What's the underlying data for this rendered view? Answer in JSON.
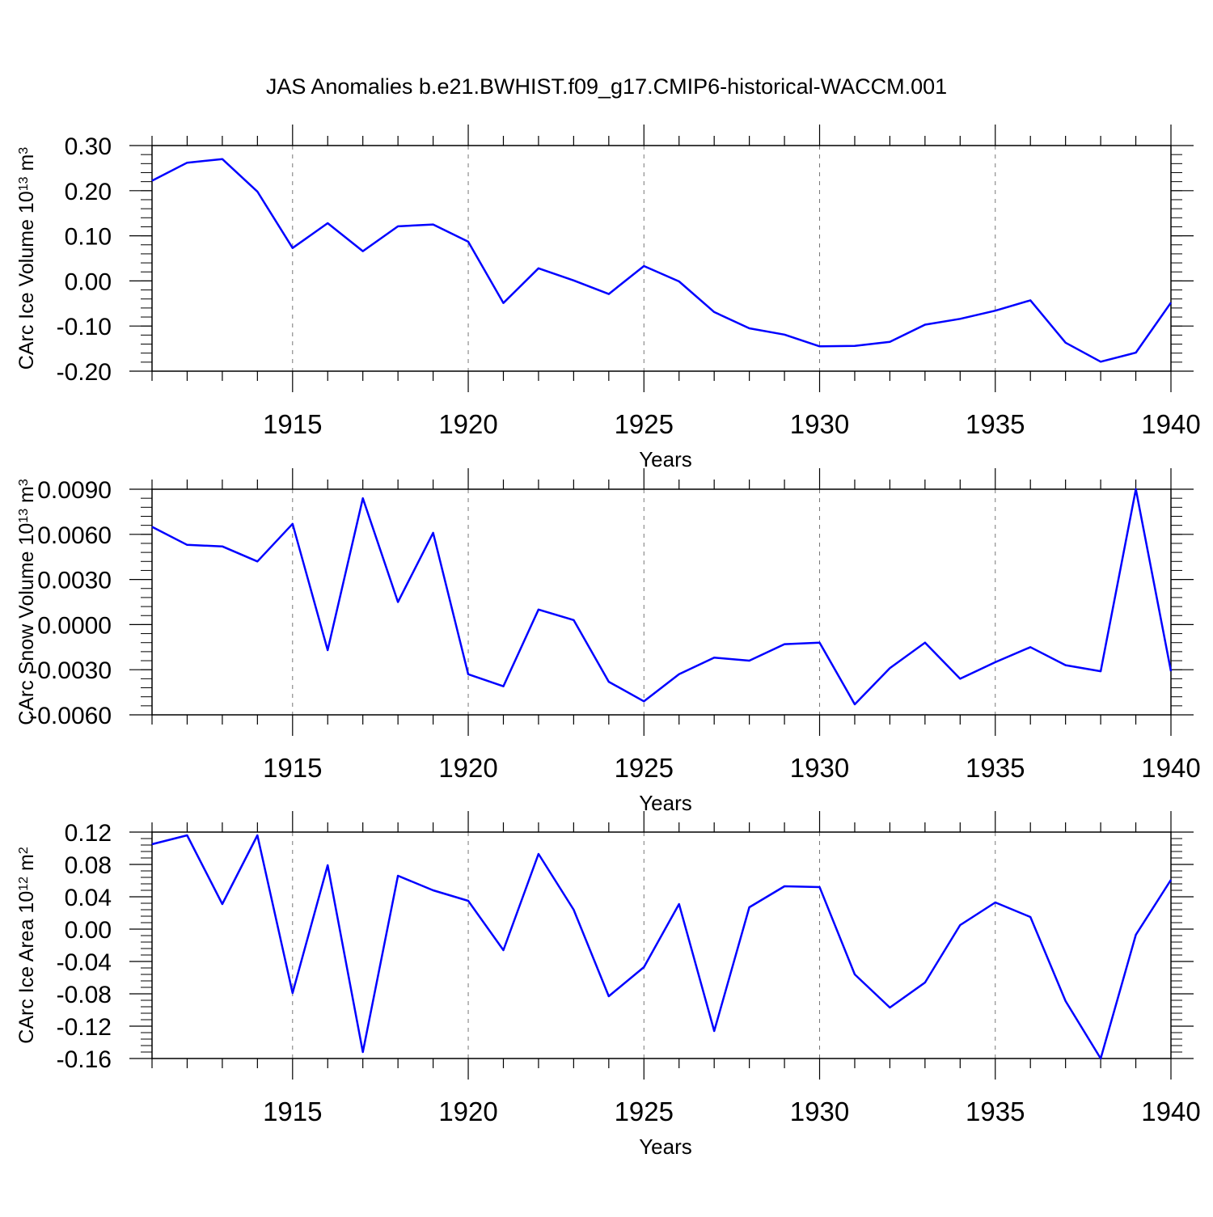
{
  "chart_data": {
    "title": "JAS Anomalies b.e21.BWHIST.f09_g17.CMIP6-historical-WACCM.001",
    "line_color": "#0000ff",
    "panels": [
      {
        "type": "line",
        "ylabel_parts": [
          "CArc Ice Volume 10",
          "13",
          " m",
          "3"
        ],
        "xlabel": "Years",
        "xlim": [
          1911,
          1940
        ],
        "ylim": [
          -0.2,
          0.3
        ],
        "yticks": [
          0.3,
          0.2,
          0.1,
          0.0,
          -0.1,
          -0.2
        ],
        "ytick_labels": [
          "0.30",
          "0.20",
          "0.10",
          "0.00",
          "-0.10",
          "-0.20"
        ],
        "xticks": [
          1915,
          1920,
          1925,
          1930,
          1935,
          1940
        ],
        "xtick_labels": [
          "1915",
          "1920",
          "1925",
          "1930",
          "1935",
          "1940"
        ],
        "x": [
          1911,
          1912,
          1913,
          1914,
          1915,
          1916,
          1917,
          1918,
          1919,
          1920,
          1921,
          1922,
          1923,
          1924,
          1925,
          1926,
          1927,
          1928,
          1929,
          1930,
          1931,
          1932,
          1933,
          1934,
          1935,
          1936,
          1937,
          1938,
          1939,
          1940
        ],
        "values": [
          0.222,
          0.262,
          0.27,
          0.198,
          0.073,
          0.128,
          0.066,
          0.121,
          0.125,
          0.087,
          -0.049,
          0.028,
          0.001,
          -0.029,
          0.033,
          -0.001,
          -0.069,
          -0.105,
          -0.119,
          -0.145,
          -0.144,
          -0.135,
          -0.097,
          -0.084,
          -0.066,
          -0.043,
          -0.137,
          -0.179,
          -0.159,
          -0.048
        ]
      },
      {
        "type": "line",
        "ylabel_parts": [
          "CArc Snow Volume 10",
          "13",
          " m",
          "3"
        ],
        "xlabel": "Years",
        "xlim": [
          1911,
          1940
        ],
        "ylim": [
          -0.006,
          0.009
        ],
        "yticks": [
          0.009,
          0.006,
          0.003,
          0.0,
          -0.003,
          -0.006
        ],
        "ytick_labels": [
          "0.0090",
          "0.0060",
          "0.0030",
          "0.0000",
          "-0.0030",
          "-0.0060"
        ],
        "xticks": [
          1915,
          1920,
          1925,
          1930,
          1935,
          1940
        ],
        "xtick_labels": [
          "1915",
          "1920",
          "1925",
          "1930",
          "1935",
          "1940"
        ],
        "x": [
          1911,
          1912,
          1913,
          1914,
          1915,
          1916,
          1917,
          1918,
          1919,
          1920,
          1921,
          1922,
          1923,
          1924,
          1925,
          1926,
          1927,
          1928,
          1929,
          1930,
          1931,
          1932,
          1933,
          1934,
          1935,
          1936,
          1937,
          1938,
          1939,
          1940
        ],
        "values": [
          0.0065,
          0.0053,
          0.0052,
          0.0042,
          0.0067,
          -0.0017,
          0.0084,
          0.0015,
          0.0061,
          -0.0033,
          -0.0041,
          0.001,
          0.0003,
          -0.0038,
          -0.0051,
          -0.0033,
          -0.0022,
          -0.0024,
          -0.0013,
          -0.0012,
          -0.0053,
          -0.0029,
          -0.0012,
          -0.0036,
          -0.0025,
          -0.0015,
          -0.0027,
          -0.0031,
          0.009,
          -0.0031
        ]
      },
      {
        "type": "line",
        "ylabel_parts": [
          "CArc Ice Area 10",
          "12",
          " m",
          "2"
        ],
        "xlabel": "Years",
        "xlim": [
          1911,
          1940
        ],
        "ylim": [
          -0.16,
          0.12
        ],
        "yticks": [
          0.12,
          0.08,
          0.04,
          0.0,
          -0.04,
          -0.08,
          -0.12,
          -0.16
        ],
        "ytick_labels": [
          "0.12",
          "0.08",
          "0.04",
          "0.00",
          "-0.04",
          "-0.08",
          "-0.12",
          "-0.16"
        ],
        "xticks": [
          1915,
          1920,
          1925,
          1930,
          1935,
          1940
        ],
        "xtick_labels": [
          "1915",
          "1920",
          "1925",
          "1930",
          "1935",
          "1940"
        ],
        "x": [
          1911,
          1912,
          1913,
          1914,
          1915,
          1916,
          1917,
          1918,
          1919,
          1920,
          1921,
          1922,
          1923,
          1924,
          1925,
          1926,
          1927,
          1928,
          1929,
          1930,
          1931,
          1932,
          1933,
          1934,
          1935,
          1936,
          1937,
          1938,
          1939,
          1940
        ],
        "values": [
          0.105,
          0.116,
          0.031,
          0.116,
          -0.079,
          0.079,
          -0.152,
          0.066,
          0.048,
          0.035,
          -0.026,
          0.093,
          0.024,
          -0.083,
          -0.047,
          0.031,
          -0.126,
          0.027,
          0.053,
          0.052,
          -0.056,
          -0.097,
          -0.066,
          0.005,
          0.033,
          0.015,
          -0.089,
          -0.16,
          -0.007,
          0.061
        ]
      }
    ]
  }
}
